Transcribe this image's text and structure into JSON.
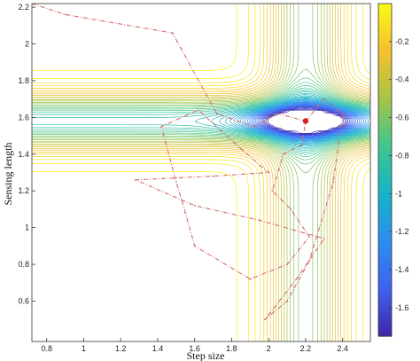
{
  "chart_data": {
    "type": "contour",
    "xlabel": "Step size",
    "ylabel": "Sensing length",
    "xlim": [
      0.72,
      2.55
    ],
    "ylim": [
      0.38,
      2.22
    ],
    "x_ticks": [
      0.8,
      1,
      1.2,
      1.4,
      1.6,
      1.8,
      2,
      2.2,
      2.4
    ],
    "x_tick_labels": [
      "0.8",
      "1",
      "1.2",
      "1.4",
      "1.6",
      "1.8",
      "2",
      "2.2",
      "2.4"
    ],
    "y_ticks": [
      0.6,
      0.8,
      1,
      1.2,
      1.4,
      1.6,
      1.8,
      2,
      2.2
    ],
    "y_tick_labels": [
      "0.6",
      "0.8",
      "1",
      "1.2",
      "1.4",
      "1.6",
      "1.8",
      "2",
      "2.2"
    ],
    "optimum": {
      "x": 2.2,
      "y": 1.58
    },
    "colorbar": {
      "range": [
        -1.75,
        0
      ],
      "ticks": [
        -1.6,
        -1.4,
        -1.2,
        -1,
        -0.8,
        -0.6,
        -0.4,
        -0.2
      ],
      "tick_labels": [
        "-1.6",
        "-1.4",
        "-1.2",
        "-1",
        "-0.8",
        "-0.6",
        "-0.4",
        "-0.2"
      ],
      "colormap": [
        "#3e26a8",
        "#4062f0",
        "#2c8ef0",
        "#16b4c8",
        "#3fc68f",
        "#a6c446",
        "#f5c02e",
        "#f9fb15"
      ]
    },
    "search_path": {
      "color": "#d36b6b",
      "points": [
        [
          0.72,
          2.22
        ],
        [
          0.9,
          2.16
        ],
        [
          1.48,
          2.06
        ],
        [
          1.72,
          1.62
        ],
        [
          1.92,
          1.55
        ],
        [
          2.05,
          1.62
        ],
        [
          2.2,
          1.58
        ],
        [
          2.18,
          1.45
        ],
        [
          2.08,
          1.4
        ],
        [
          2.02,
          1.2
        ],
        [
          2.12,
          1.1
        ],
        [
          2.22,
          0.95
        ],
        [
          2.1,
          0.8
        ],
        [
          1.9,
          0.72
        ],
        [
          1.6,
          0.9
        ],
        [
          1.55,
          1.08
        ],
        [
          1.5,
          1.25
        ],
        [
          1.42,
          1.55
        ],
        [
          1.62,
          1.64
        ],
        [
          1.86,
          1.42
        ],
        [
          2.0,
          1.3
        ],
        [
          1.7,
          1.28
        ],
        [
          1.28,
          1.26
        ],
        [
          1.6,
          1.12
        ],
        [
          1.95,
          1.04
        ],
        [
          2.3,
          0.94
        ],
        [
          2.15,
          0.72
        ],
        [
          1.98,
          0.5
        ],
        [
          2.1,
          0.6
        ],
        [
          2.22,
          0.82
        ],
        [
          2.35,
          1.25
        ],
        [
          2.4,
          1.62
        ],
        [
          2.3,
          1.7
        ],
        [
          2.2,
          1.58
        ]
      ]
    }
  }
}
